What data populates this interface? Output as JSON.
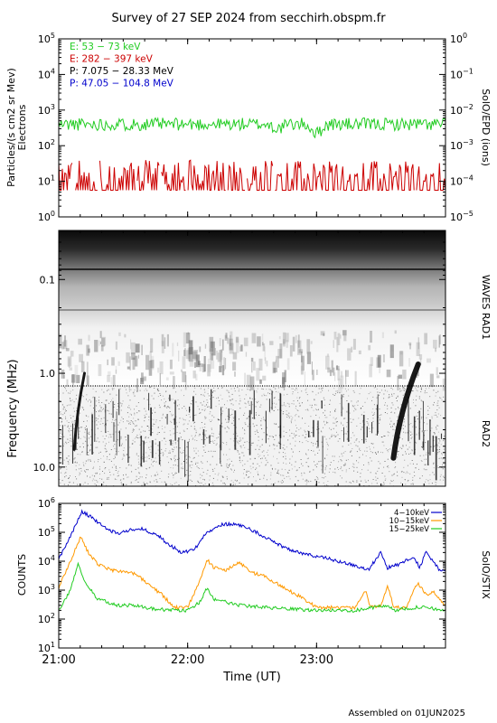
{
  "title": "Survey of 27 SEP 2024 from secchirh.obspm.fr",
  "footer": "Assembled on 01JUN2025",
  "chart_data": [
    {
      "type": "line",
      "panel": "particles",
      "ylabel": "Particles/(s cm2 sr Mev)",
      "ylabel2": "Electrons",
      "right_label": "SolO/EPD (ions)",
      "y_scale": "log",
      "ylim": [
        1,
        100000
      ],
      "y_ticks": [
        {
          "v": 1,
          "m": "10",
          "e": "0"
        },
        {
          "v": 10,
          "m": "10",
          "e": "1"
        },
        {
          "v": 100,
          "m": "10",
          "e": "2"
        },
        {
          "v": 1000,
          "m": "10",
          "e": "3"
        },
        {
          "v": 10000,
          "m": "10",
          "e": "4"
        },
        {
          "v": 100000,
          "m": "10",
          "e": "5"
        }
      ],
      "y2_scale": "log",
      "y2lim": [
        1e-05,
        1
      ],
      "y2_ticks": [
        {
          "v": 1e-05,
          "m": "10",
          "e": "−5"
        },
        {
          "v": 0.0001,
          "m": "10",
          "e": "−4"
        },
        {
          "v": 0.001,
          "m": "10",
          "e": "−3"
        },
        {
          "v": 0.01,
          "m": "10",
          "e": "−2"
        },
        {
          "v": 0.1,
          "m": "10",
          "e": "−1"
        },
        {
          "v": 1,
          "m": "10",
          "e": "0"
        }
      ],
      "legend_placement": "top-left",
      "series": [
        {
          "name": "E: 53 − 73 keV",
          "color": "#22cc22",
          "level": 400,
          "spread": 0.18,
          "seed": 11,
          "dips": [
            [
              23.0,
              0.55
            ],
            [
              22.7,
              0.75
            ]
          ]
        },
        {
          "name": "E: 282 − 397 keV",
          "color": "#cc0000",
          "level": 8,
          "spread": 0.45,
          "seed": 37,
          "dips": []
        },
        {
          "name": "P: 7.075 − 28.33 MeV",
          "color": "#000000",
          "level": null
        },
        {
          "name": "P: 47.05 − 104.8 MeV",
          "color": "#0000cc",
          "level": null
        }
      ]
    },
    {
      "type": "heatmap",
      "panel": "radio",
      "ylabel": "Frequency (MHz)",
      "right_labels": [
        "WAVES RAD1",
        "RAD2"
      ],
      "y_scale": "log",
      "ylim": [
        0.03,
        16
      ],
      "y_ticks": [
        "0.1",
        "1.0",
        "10.0"
      ],
      "bursts": [
        {
          "t": 21.13,
          "f_low": 6.5,
          "f_high": 1.0,
          "width": 0.05
        },
        {
          "t": 23.62,
          "f_low": 8.0,
          "f_high": 0.8,
          "width": 0.12
        }
      ]
    },
    {
      "type": "line",
      "panel": "stix",
      "ylabel": "COUNTS",
      "right_label": "SolO/STIX",
      "y_scale": "log",
      "ylim": [
        10,
        1000000
      ],
      "y_ticks": [
        {
          "v": 10,
          "m": "10",
          "e": "1"
        },
        {
          "v": 100,
          "m": "10",
          "e": "2"
        },
        {
          "v": 1000,
          "m": "10",
          "e": "3"
        },
        {
          "v": 10000,
          "m": "10",
          "e": "4"
        },
        {
          "v": 100000,
          "m": "10",
          "e": "5"
        },
        {
          "v": 1000000,
          "m": "10",
          "e": "6"
        }
      ],
      "xlabel": "Time (UT)",
      "xlim": [
        21.0,
        24.0
      ],
      "x_ticks": [
        {
          "v": 21.0,
          "label": "21:00"
        },
        {
          "v": 22.0,
          "label": "22:00"
        },
        {
          "v": 23.0,
          "label": "23:00"
        }
      ],
      "legend_placement": "top-right",
      "series": [
        {
          "name": "4−10keV",
          "color": "#0000cc",
          "points": [
            [
              21.0,
              12000
            ],
            [
              21.08,
              60000
            ],
            [
              21.18,
              500000
            ],
            [
              21.25,
              350000
            ],
            [
              21.35,
              150000
            ],
            [
              21.45,
              90000
            ],
            [
              21.55,
              120000
            ],
            [
              21.62,
              140000
            ],
            [
              21.75,
              90000
            ],
            [
              21.85,
              40000
            ],
            [
              21.95,
              20000
            ],
            [
              22.05,
              25000
            ],
            [
              22.15,
              100000
            ],
            [
              22.25,
              180000
            ],
            [
              22.35,
              200000
            ],
            [
              22.45,
              150000
            ],
            [
              22.6,
              70000
            ],
            [
              22.75,
              30000
            ],
            [
              22.9,
              18000
            ],
            [
              23.0,
              15000
            ],
            [
              23.1,
              12000
            ],
            [
              23.2,
              9000
            ],
            [
              23.3,
              7000
            ],
            [
              23.4,
              5000
            ],
            [
              23.5,
              20000
            ],
            [
              23.55,
              6000
            ],
            [
              23.65,
              8000
            ],
            [
              23.75,
              15000
            ],
            [
              23.8,
              6000
            ],
            [
              23.85,
              22000
            ],
            [
              23.95,
              5000
            ],
            [
              24.0,
              5000
            ]
          ]
        },
        {
          "name": "10−15keV",
          "color": "#ff9900",
          "points": [
            [
              21.0,
              1200
            ],
            [
              21.08,
              8000
            ],
            [
              21.17,
              70000
            ],
            [
              21.23,
              20000
            ],
            [
              21.3,
              8000
            ],
            [
              21.4,
              5000
            ],
            [
              21.5,
              4500
            ],
            [
              21.6,
              3500
            ],
            [
              21.7,
              1500
            ],
            [
              21.8,
              700
            ],
            [
              21.9,
              250
            ],
            [
              22.0,
              250
            ],
            [
              22.1,
              2500
            ],
            [
              22.15,
              12000
            ],
            [
              22.2,
              6000
            ],
            [
              22.3,
              5000
            ],
            [
              22.4,
              9000
            ],
            [
              22.5,
              4000
            ],
            [
              22.6,
              3000
            ],
            [
              22.75,
              1200
            ],
            [
              22.9,
              500
            ],
            [
              23.0,
              250
            ],
            [
              23.3,
              250
            ],
            [
              23.38,
              900
            ],
            [
              23.42,
              250
            ],
            [
              23.5,
              300
            ],
            [
              23.55,
              1500
            ],
            [
              23.6,
              250
            ],
            [
              23.7,
              250
            ],
            [
              23.78,
              1800
            ],
            [
              23.85,
              700
            ],
            [
              23.9,
              900
            ],
            [
              24.0,
              300
            ]
          ]
        },
        {
          "name": "15−25keV",
          "color": "#22cc22",
          "points": [
            [
              21.0,
              200
            ],
            [
              21.08,
              800
            ],
            [
              21.15,
              8000
            ],
            [
              21.2,
              2000
            ],
            [
              21.3,
              500
            ],
            [
              21.45,
              300
            ],
            [
              21.6,
              300
            ],
            [
              21.75,
              220
            ],
            [
              21.9,
              200
            ],
            [
              22.0,
              200
            ],
            [
              22.1,
              400
            ],
            [
              22.15,
              1200
            ],
            [
              22.2,
              500
            ],
            [
              22.4,
              300
            ],
            [
              22.6,
              250
            ],
            [
              22.8,
              220
            ],
            [
              23.0,
              200
            ],
            [
              23.3,
              200
            ],
            [
              23.55,
              300
            ],
            [
              23.6,
              200
            ],
            [
              23.8,
              260
            ],
            [
              24.0,
              200
            ]
          ]
        }
      ]
    }
  ]
}
